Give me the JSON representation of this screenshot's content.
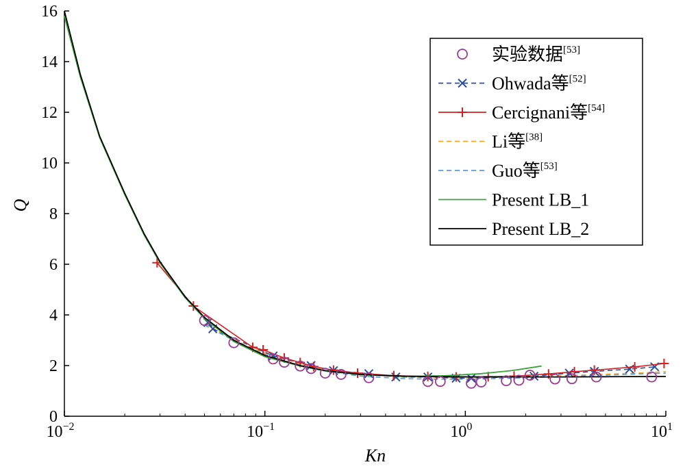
{
  "chart_data": {
    "type": "line",
    "title": "",
    "xlabel": "Kn",
    "ylabel": "Q",
    "xscale": "log",
    "xlim": [
      0.01,
      10
    ],
    "ylim": [
      0,
      16
    ],
    "x_ticks": [
      {
        "value": 0.01,
        "base": "10",
        "exp": "−2"
      },
      {
        "value": 0.1,
        "base": "10",
        "exp": "−1"
      },
      {
        "value": 1,
        "base": "10",
        "exp": "0"
      },
      {
        "value": 10,
        "base": "10",
        "exp": "1"
      }
    ],
    "y_ticks": [
      0,
      2,
      4,
      6,
      8,
      10,
      12,
      14,
      16
    ],
    "grid": false,
    "legend_position": "top-right",
    "series": [
      {
        "name": "实验数据",
        "ref": "[53]",
        "style": "markers",
        "marker": "circle",
        "color": "#9b3d8f",
        "points": [
          [
            0.05,
            3.78
          ],
          [
            0.07,
            2.9
          ],
          [
            0.11,
            2.26
          ],
          [
            0.125,
            2.13
          ],
          [
            0.15,
            1.98
          ],
          [
            0.17,
            1.88
          ],
          [
            0.2,
            1.7
          ],
          [
            0.24,
            1.65
          ],
          [
            0.33,
            1.52
          ],
          [
            0.65,
            1.37
          ],
          [
            0.75,
            1.37
          ],
          [
            1.07,
            1.3
          ],
          [
            1.2,
            1.35
          ],
          [
            1.6,
            1.4
          ],
          [
            1.85,
            1.42
          ],
          [
            2.1,
            1.62
          ],
          [
            2.8,
            1.47
          ],
          [
            3.4,
            1.48
          ],
          [
            4.5,
            1.55
          ],
          [
            8.5,
            1.55
          ]
        ]
      },
      {
        "name": "Ohwada等",
        "ref": "[52]",
        "style": "dashed-markers",
        "marker": "x",
        "color": "#2c4f9e",
        "points": [
          [
            0.052,
            3.7
          ],
          [
            0.055,
            3.45
          ],
          [
            0.11,
            2.38
          ],
          [
            0.17,
            2.0
          ],
          [
            0.22,
            1.8
          ],
          [
            0.33,
            1.68
          ],
          [
            0.45,
            1.55
          ],
          [
            0.65,
            1.55
          ],
          [
            0.9,
            1.5
          ],
          [
            1.07,
            1.5
          ],
          [
            2.2,
            1.58
          ],
          [
            3.3,
            1.7
          ],
          [
            4.4,
            1.77
          ],
          [
            6.6,
            1.86
          ],
          [
            8.8,
            1.95
          ]
        ]
      },
      {
        "name": "Cercignani等",
        "ref": "[54]",
        "style": "solid-markers",
        "marker": "plus",
        "color": "#d42020",
        "points": [
          [
            0.029,
            6.06
          ],
          [
            0.044,
            4.35
          ],
          [
            0.087,
            2.72
          ],
          [
            0.098,
            2.62
          ],
          [
            0.125,
            2.3
          ],
          [
            0.15,
            2.12
          ],
          [
            0.175,
            1.96
          ],
          [
            0.22,
            1.82
          ],
          [
            0.29,
            1.7
          ],
          [
            0.44,
            1.6
          ],
          [
            0.65,
            1.57
          ],
          [
            0.9,
            1.55
          ],
          [
            1.3,
            1.56
          ],
          [
            1.75,
            1.58
          ],
          [
            2.6,
            1.67
          ],
          [
            3.5,
            1.76
          ],
          [
            4.4,
            1.82
          ],
          [
            7.0,
            1.95
          ],
          [
            9.8,
            2.08
          ]
        ]
      },
      {
        "name": "Li等",
        "ref": "[38]",
        "style": "dashed",
        "color": "#f5a623",
        "points": [
          [
            0.05,
            3.65
          ],
          [
            0.08,
            2.8
          ],
          [
            0.12,
            2.25
          ],
          [
            0.2,
            1.82
          ],
          [
            0.3,
            1.64
          ],
          [
            0.5,
            1.54
          ],
          [
            0.8,
            1.52
          ],
          [
            1.2,
            1.53
          ],
          [
            2,
            1.56
          ],
          [
            3,
            1.6
          ],
          [
            5,
            1.66
          ],
          [
            8,
            1.72
          ],
          [
            10,
            1.76
          ]
        ]
      },
      {
        "name": "Guo等",
        "ref": "[53]",
        "style": "dashed",
        "color": "#5b9bd5",
        "points": [
          [
            0.05,
            3.6
          ],
          [
            0.08,
            2.75
          ],
          [
            0.12,
            2.2
          ],
          [
            0.2,
            1.78
          ],
          [
            0.3,
            1.58
          ],
          [
            0.5,
            1.48
          ],
          [
            0.8,
            1.46
          ],
          [
            1.2,
            1.47
          ],
          [
            2,
            1.52
          ],
          [
            3,
            1.56
          ],
          [
            5,
            1.62
          ],
          [
            8,
            1.68
          ],
          [
            10,
            1.7
          ]
        ]
      },
      {
        "name": "Present LB_1",
        "ref": "",
        "style": "solid",
        "color": "#3aa33a",
        "points": [
          [
            0.01,
            15.8
          ],
          [
            0.012,
            13.4
          ],
          [
            0.015,
            11.0
          ],
          [
            0.02,
            8.75
          ],
          [
            0.025,
            7.15
          ],
          [
            0.03,
            6.05
          ],
          [
            0.04,
            4.68
          ],
          [
            0.05,
            3.85
          ],
          [
            0.07,
            2.95
          ],
          [
            0.1,
            2.35
          ],
          [
            0.15,
            1.98
          ],
          [
            0.2,
            1.79
          ],
          [
            0.3,
            1.64
          ],
          [
            0.5,
            1.57
          ],
          [
            0.8,
            1.6
          ],
          [
            1.2,
            1.68
          ],
          [
            1.7,
            1.8
          ],
          [
            2.4,
            1.98
          ]
        ]
      },
      {
        "name": "Present LB_2",
        "ref": "",
        "style": "solid",
        "color": "#000000",
        "points": [
          [
            0.01,
            16.0
          ],
          [
            0.012,
            13.5
          ],
          [
            0.015,
            11.05
          ],
          [
            0.02,
            8.8
          ],
          [
            0.025,
            7.2
          ],
          [
            0.03,
            6.1
          ],
          [
            0.04,
            4.72
          ],
          [
            0.05,
            3.9
          ],
          [
            0.07,
            3.0
          ],
          [
            0.1,
            2.4
          ],
          [
            0.15,
            2.0
          ],
          [
            0.2,
            1.8
          ],
          [
            0.3,
            1.65
          ],
          [
            0.5,
            1.58
          ],
          [
            0.8,
            1.56
          ],
          [
            1.2,
            1.55
          ],
          [
            2,
            1.55
          ],
          [
            3,
            1.55
          ],
          [
            5,
            1.56
          ],
          [
            10,
            1.57
          ]
        ]
      }
    ]
  }
}
